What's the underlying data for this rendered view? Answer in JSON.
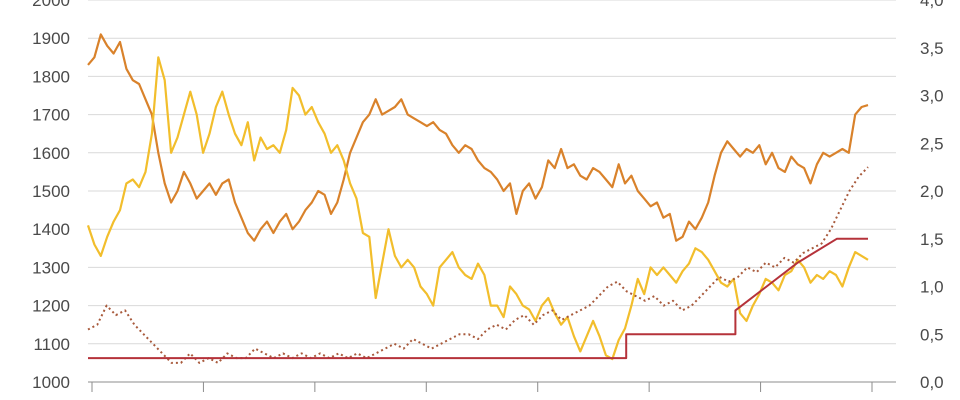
{
  "chart_data": {
    "type": "line",
    "title": "",
    "xlabel": "",
    "ylabel": "",
    "y_left": {
      "ylim": [
        1000,
        2000
      ],
      "ticks": [
        "1000",
        "1100",
        "1200",
        "1300",
        "1400",
        "1500",
        "1600",
        "1700",
        "1800",
        "1900",
        "2000"
      ]
    },
    "y_right": {
      "ylim": [
        0,
        4
      ],
      "ticks": [
        "0,0",
        "0,5",
        "1,0",
        "1,5",
        "2,0",
        "2,5",
        "3,0",
        "3,5",
        "4,0"
      ]
    },
    "x_ticks": 8,
    "grid": true,
    "legend": "none",
    "series": [
      {
        "axis": "left",
        "style": "solid",
        "color": "#d9822b",
        "values": [
          1830,
          1850,
          1910,
          1880,
          1860,
          1890,
          1820,
          1790,
          1780,
          1740,
          1700,
          1600,
          1520,
          1470,
          1500,
          1550,
          1520,
          1480,
          1500,
          1520,
          1490,
          1520,
          1530,
          1470,
          1430,
          1390,
          1370,
          1400,
          1420,
          1390,
          1420,
          1440,
          1400,
          1420,
          1450,
          1470,
          1500,
          1490,
          1440,
          1470,
          1530,
          1600,
          1640,
          1680,
          1700,
          1740,
          1700,
          1710,
          1720,
          1740,
          1700,
          1690,
          1680,
          1670,
          1680,
          1660,
          1650,
          1620,
          1600,
          1620,
          1610,
          1580,
          1560,
          1550,
          1530,
          1500,
          1520,
          1440,
          1500,
          1520,
          1480,
          1510,
          1580,
          1560,
          1610,
          1560,
          1570,
          1540,
          1530,
          1560,
          1550,
          1530,
          1510,
          1570,
          1520,
          1540,
          1500,
          1480,
          1460,
          1470,
          1430,
          1440,
          1370,
          1380,
          1420,
          1400,
          1430,
          1470,
          1540,
          1600,
          1630,
          1610,
          1590,
          1610,
          1600,
          1620,
          1570,
          1600,
          1560,
          1550,
          1590,
          1570,
          1560,
          1520,
          1570,
          1600,
          1590,
          1600,
          1610,
          1600,
          1700,
          1720,
          1725
        ],
        "x_start": 0.0,
        "x_end": 1.0
      },
      {
        "axis": "left",
        "style": "solid",
        "color": "#f2be2c",
        "values": [
          1410,
          1360,
          1330,
          1380,
          1420,
          1450,
          1520,
          1530,
          1510,
          1550,
          1650,
          1850,
          1790,
          1600,
          1640,
          1700,
          1760,
          1700,
          1600,
          1650,
          1720,
          1760,
          1700,
          1650,
          1620,
          1680,
          1580,
          1640,
          1610,
          1620,
          1600,
          1660,
          1770,
          1750,
          1700,
          1720,
          1680,
          1650,
          1600,
          1620,
          1580,
          1520,
          1480,
          1390,
          1380,
          1220,
          1310,
          1400,
          1330,
          1300,
          1320,
          1300,
          1250,
          1230,
          1200,
          1300,
          1320,
          1340,
          1300,
          1280,
          1270,
          1310,
          1280,
          1200,
          1200,
          1170,
          1250,
          1230,
          1200,
          1190,
          1160,
          1200,
          1220,
          1180,
          1150,
          1170,
          1120,
          1080,
          1120,
          1160,
          1120,
          1070,
          1060,
          1110,
          1140,
          1200,
          1270,
          1230,
          1300,
          1280,
          1300,
          1280,
          1260,
          1290,
          1310,
          1350,
          1340,
          1320,
          1290,
          1260,
          1250,
          1270,
          1180,
          1160,
          1200,
          1230,
          1270,
          1260,
          1240,
          1280,
          1290,
          1320,
          1300,
          1260,
          1280,
          1270,
          1290,
          1280,
          1250,
          1300,
          1340,
          1330,
          1320
        ],
        "x_start": 0.0,
        "x_end": 1.0
      },
      {
        "axis": "right",
        "style": "dotted",
        "color": "#a85a3c",
        "values": [
          0.55,
          0.6,
          0.8,
          0.7,
          0.75,
          0.6,
          0.5,
          0.4,
          0.3,
          0.2,
          0.2,
          0.3,
          0.2,
          0.25,
          0.2,
          0.3,
          0.25,
          0.25,
          0.35,
          0.3,
          0.25,
          0.3,
          0.25,
          0.3,
          0.25,
          0.3,
          0.25,
          0.3,
          0.25,
          0.3,
          0.25,
          0.3,
          0.35,
          0.4,
          0.35,
          0.45,
          0.4,
          0.35,
          0.4,
          0.45,
          0.5,
          0.5,
          0.45,
          0.55,
          0.6,
          0.55,
          0.65,
          0.7,
          0.6,
          0.7,
          0.75,
          0.65,
          0.7,
          0.75,
          0.8,
          0.9,
          1.0,
          1.05,
          0.95,
          0.9,
          0.85,
          0.9,
          0.8,
          0.85,
          0.75,
          0.8,
          0.9,
          1.0,
          1.1,
          1.05,
          1.1,
          1.2,
          1.15,
          1.25,
          1.2,
          1.3,
          1.25,
          1.35,
          1.4,
          1.45,
          1.6,
          1.8,
          2.0,
          2.15,
          2.25
        ],
        "x_start": 0.0,
        "x_end": 1.0
      },
      {
        "axis": "right",
        "style": "step",
        "color": "#b5323a",
        "values": [
          0.25,
          0.25,
          0.5,
          0.5,
          0.75,
          1.0,
          1.25,
          1.5,
          1.5
        ],
        "x": [
          0.0,
          0.69,
          0.69,
          0.83,
          0.83,
          0.87,
          0.91,
          0.96,
          1.0
        ]
      }
    ]
  }
}
